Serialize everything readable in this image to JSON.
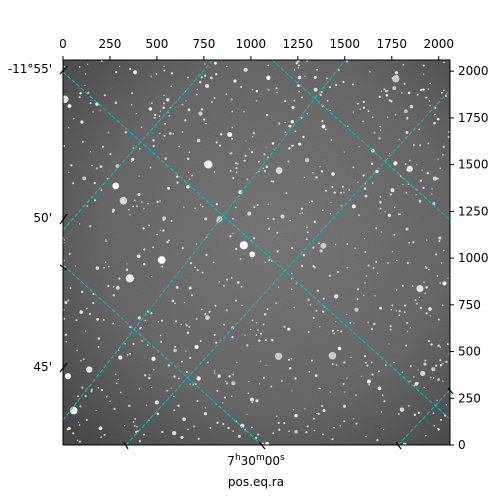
{
  "image": {
    "kind": "astronomical star field",
    "palette": "grayscale",
    "overlay_grid_color": "#00c8d2"
  },
  "axes": {
    "top_ticks": [
      "0",
      "250",
      "500",
      "750",
      "1000",
      "1250",
      "1500",
      "1750",
      "2000"
    ],
    "right_ticks": [
      "0",
      "250",
      "500",
      "750",
      "1000",
      "1250",
      "1500",
      "1750",
      "2000"
    ],
    "left_labels": [
      "-11°55'",
      "50'",
      "45'"
    ],
    "bottom_ra": {
      "h": "7",
      "m": "30",
      "s": "00"
    },
    "bottom_title": "pos.eq.ra"
  }
}
